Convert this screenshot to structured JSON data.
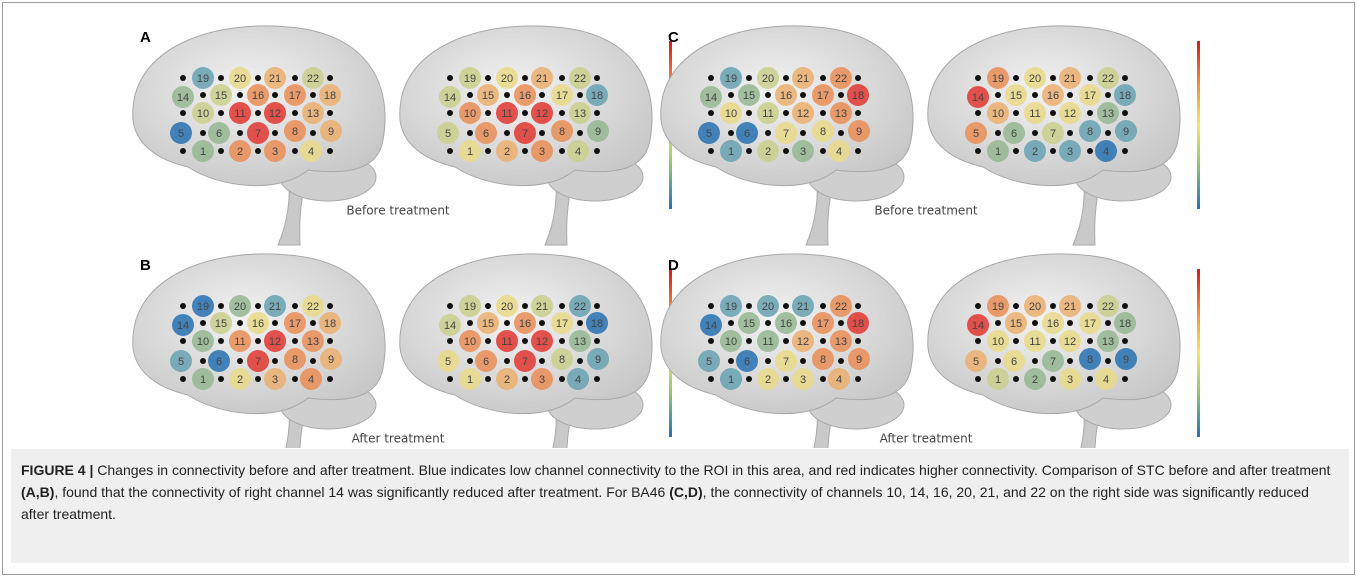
{
  "panels": [
    {
      "letter": "A",
      "condition": "Before treatment",
      "brains": [
        {
          "channels": [
            "1",
            "2",
            "3",
            "4",
            "5",
            "6",
            "7",
            "8",
            "9",
            "10",
            "11",
            "12",
            "13",
            "14",
            "15",
            "16",
            "17",
            "18",
            "19",
            "20",
            "21",
            "22"
          ],
          "colors": [
            "#96b894",
            "#e9905a",
            "#e9905a",
            "#e8d98a",
            "#2c74b2",
            "#96b894",
            "#e03b35",
            "#e9905a",
            "#ebb072",
            "#c9cf8e",
            "#e03b35",
            "#e03b35",
            "#ebb072",
            "#96b894",
            "#c9cf8e",
            "#e9905a",
            "#e9905a",
            "#ebb072",
            "#6aa3b3",
            "#e8d98a",
            "#ebb072",
            "#c9cf8e"
          ]
        },
        {
          "channels": [
            "1",
            "2",
            "3",
            "4",
            "5",
            "6",
            "7",
            "8",
            "9",
            "10",
            "11",
            "12",
            "13",
            "14",
            "15",
            "16",
            "17",
            "18",
            "19",
            "20",
            "21",
            "22"
          ],
          "colors": [
            "#e8d98a",
            "#ebb072",
            "#e9905a",
            "#c9cf8e",
            "#c9cf8e",
            "#e9905a",
            "#e03b35",
            "#e9905a",
            "#96b894",
            "#e9905a",
            "#e03b35",
            "#e03b35",
            "#c9cf8e",
            "#c9cf8e",
            "#ebb072",
            "#e9905a",
            "#e8d98a",
            "#6aa3b3",
            "#c9cf8e",
            "#e8d98a",
            "#ebb072",
            "#c9cf8e"
          ]
        }
      ]
    },
    {
      "letter": "B",
      "condition": "After treatment",
      "brains": [
        {
          "channels": [
            "1",
            "2",
            "3",
            "4",
            "5",
            "6",
            "7",
            "8",
            "9",
            "10",
            "11",
            "12",
            "13",
            "14",
            "15",
            "16",
            "17",
            "18",
            "19",
            "20",
            "21",
            "22"
          ],
          "colors": [
            "#96b894",
            "#e8d98a",
            "#ebb072",
            "#e9905a",
            "#6aa3b3",
            "#2c74b2",
            "#e03b35",
            "#e9905a",
            "#ebb072",
            "#96b894",
            "#e9905a",
            "#e03b35",
            "#e9905a",
            "#2c74b2",
            "#c9cf8e",
            "#e8d98a",
            "#e9905a",
            "#ebb072",
            "#2c74b2",
            "#96b894",
            "#6aa3b3",
            "#e8d98a"
          ]
        },
        {
          "channels": [
            "1",
            "2",
            "3",
            "4",
            "5",
            "6",
            "7",
            "8",
            "9",
            "10",
            "11",
            "12",
            "13",
            "14",
            "15",
            "16",
            "17",
            "18",
            "19",
            "20",
            "21",
            "22"
          ],
          "colors": [
            "#e8d98a",
            "#ebb072",
            "#e9905a",
            "#6aa3b3",
            "#e8d98a",
            "#e9905a",
            "#e03b35",
            "#c9cf8e",
            "#6aa3b3",
            "#e9905a",
            "#e03b35",
            "#e03b35",
            "#96b894",
            "#c9cf8e",
            "#ebb072",
            "#e9905a",
            "#e8d98a",
            "#2c74b2",
            "#c9cf8e",
            "#e8d98a",
            "#c9cf8e",
            "#6aa3b3"
          ]
        }
      ]
    },
    {
      "letter": "C",
      "condition": "Before treatment",
      "brains": [
        {
          "channels": [
            "1",
            "2",
            "3",
            "4",
            "5",
            "6",
            "7",
            "8",
            "9",
            "10",
            "11",
            "12",
            "13",
            "14",
            "15",
            "16",
            "17",
            "18",
            "19",
            "20",
            "21",
            "22"
          ],
          "colors": [
            "#6aa3b3",
            "#c9cf8e",
            "#96b894",
            "#e8d98a",
            "#2c74b2",
            "#2c74b2",
            "#e8d98a",
            "#e8d98a",
            "#e9905a",
            "#e8d98a",
            "#c9cf8e",
            "#ebb072",
            "#e9905a",
            "#96b894",
            "#96b894",
            "#ebb072",
            "#e9905a",
            "#e03b35",
            "#6aa3b3",
            "#c9cf8e",
            "#ebb072",
            "#e9905a"
          ]
        },
        {
          "channels": [
            "1",
            "2",
            "3",
            "4",
            "5",
            "6",
            "7",
            "8",
            "9",
            "10",
            "11",
            "12",
            "13",
            "14",
            "15",
            "16",
            "17",
            "18",
            "19",
            "20",
            "21",
            "22"
          ],
          "colors": [
            "#96b894",
            "#6aa3b3",
            "#6aa3b3",
            "#2c74b2",
            "#e9905a",
            "#96b894",
            "#c9cf8e",
            "#6aa3b3",
            "#6aa3b3",
            "#ebb072",
            "#e8d98a",
            "#e8d98a",
            "#96b894",
            "#e03b35",
            "#e8d98a",
            "#ebb072",
            "#e8d98a",
            "#6aa3b3",
            "#e9905a",
            "#e8d98a",
            "#ebb072",
            "#c9cf8e"
          ]
        }
      ]
    },
    {
      "letter": "D",
      "condition": "After treatment",
      "brains": [
        {
          "channels": [
            "1",
            "2",
            "3",
            "4",
            "5",
            "6",
            "7",
            "8",
            "9",
            "10",
            "11",
            "12",
            "13",
            "14",
            "15",
            "16",
            "17",
            "18",
            "19",
            "20",
            "21",
            "22"
          ],
          "colors": [
            "#6aa3b3",
            "#e8d98a",
            "#e8d98a",
            "#ebb072",
            "#6aa3b3",
            "#2c74b2",
            "#e8d98a",
            "#e9905a",
            "#e9905a",
            "#96b894",
            "#96b894",
            "#ebb072",
            "#e9905a",
            "#2c74b2",
            "#96b894",
            "#96b894",
            "#e9905a",
            "#e03b35",
            "#6aa3b3",
            "#6aa3b3",
            "#6aa3b3",
            "#e9905a"
          ]
        },
        {
          "channels": [
            "1",
            "2",
            "3",
            "4",
            "5",
            "6",
            "7",
            "8",
            "9",
            "10",
            "11",
            "12",
            "13",
            "14",
            "15",
            "16",
            "17",
            "18",
            "19",
            "20",
            "21",
            "22"
          ],
          "colors": [
            "#c9cf8e",
            "#96b894",
            "#e8d98a",
            "#e8d98a",
            "#ebb072",
            "#e8d98a",
            "#96b894",
            "#2c74b2",
            "#2c74b2",
            "#e8d98a",
            "#e8d98a",
            "#e8d98a",
            "#96b894",
            "#e03b35",
            "#ebb072",
            "#e8d98a",
            "#e8d98a",
            "#96b894",
            "#e9905a",
            "#ebb072",
            "#ebb072",
            "#c9cf8e"
          ]
        }
      ]
    }
  ],
  "caption": {
    "figure_label": "FIGURE 4 |",
    "text_1": "Changes in connectivity before and after treatment. Blue indicates low channel connectivity to the ROI in this area, and red indicates higher connectivity. Comparison of STC before and after treatment",
    "ref_1": "(A,B)",
    "text_2": ", found that the connectivity of right channel 14 was significantly reduced after treatment. For BA46",
    "ref_2": "(C,D)",
    "text_3": ", the connectivity of channels 10, 14, 16, 20, 21, and 22 on the right side was significantly reduced after treatment."
  }
}
